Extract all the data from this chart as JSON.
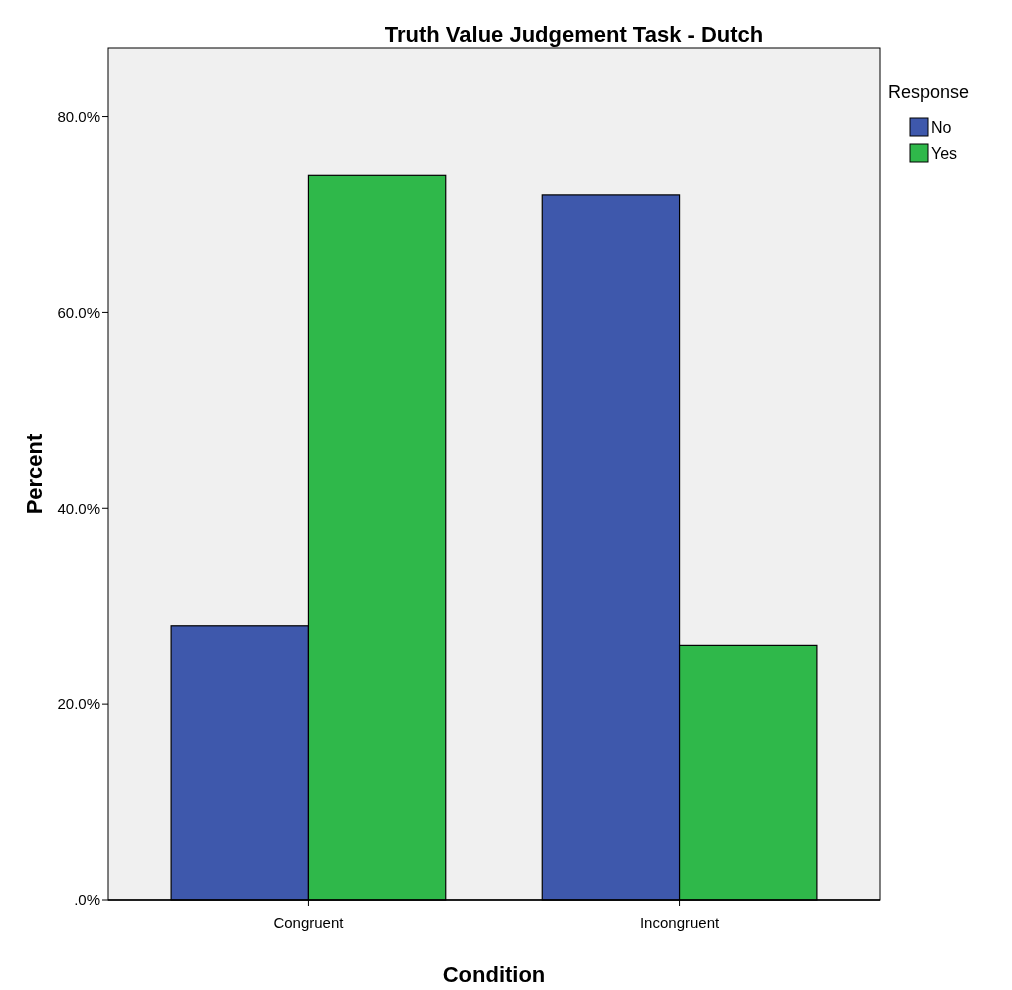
{
  "chart_data": {
    "type": "bar",
    "title": "Truth Value Judgement Task - Dutch",
    "xlabel": "Condition",
    "ylabel": "Percent",
    "legend_title": "Response",
    "categories": [
      "Congruent",
      "Incongruent"
    ],
    "series": [
      {
        "name": "No",
        "color": "#3e58ac",
        "values": [
          28.0,
          72.0
        ]
      },
      {
        "name": "Yes",
        "color": "#2fb84a",
        "values": [
          74.0,
          26.0
        ]
      }
    ],
    "ylim": [
      0,
      87
    ],
    "yticks": [
      {
        "value": 0,
        "label": ".0%"
      },
      {
        "value": 20,
        "label": "20.0%"
      },
      {
        "value": 40,
        "label": "40.0%"
      },
      {
        "value": 60,
        "label": "60.0%"
      },
      {
        "value": 80,
        "label": "80.0%"
      }
    ],
    "grid": false,
    "legend": "top right"
  }
}
